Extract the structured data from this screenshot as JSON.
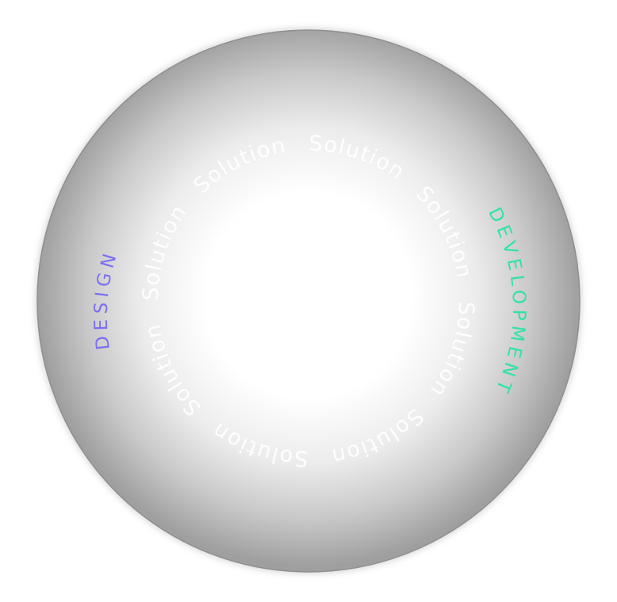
{
  "ring": {
    "word": "Solution",
    "items": [
      "Solution",
      "Solution",
      "Solution",
      "Solution",
      "Solution",
      "Solution",
      "Solution",
      "Solution"
    ]
  },
  "labels": {
    "design": {
      "text": "DESIGN",
      "color": "#7b6ff2"
    },
    "development": {
      "text": "DEVELOPMENT",
      "color": "#2fe3a6"
    }
  },
  "colors": {
    "background": "#ffffff",
    "sphere_center": "#ffffff",
    "sphere_edge": "#a8a8a8",
    "rim": "#8c8c8c"
  }
}
